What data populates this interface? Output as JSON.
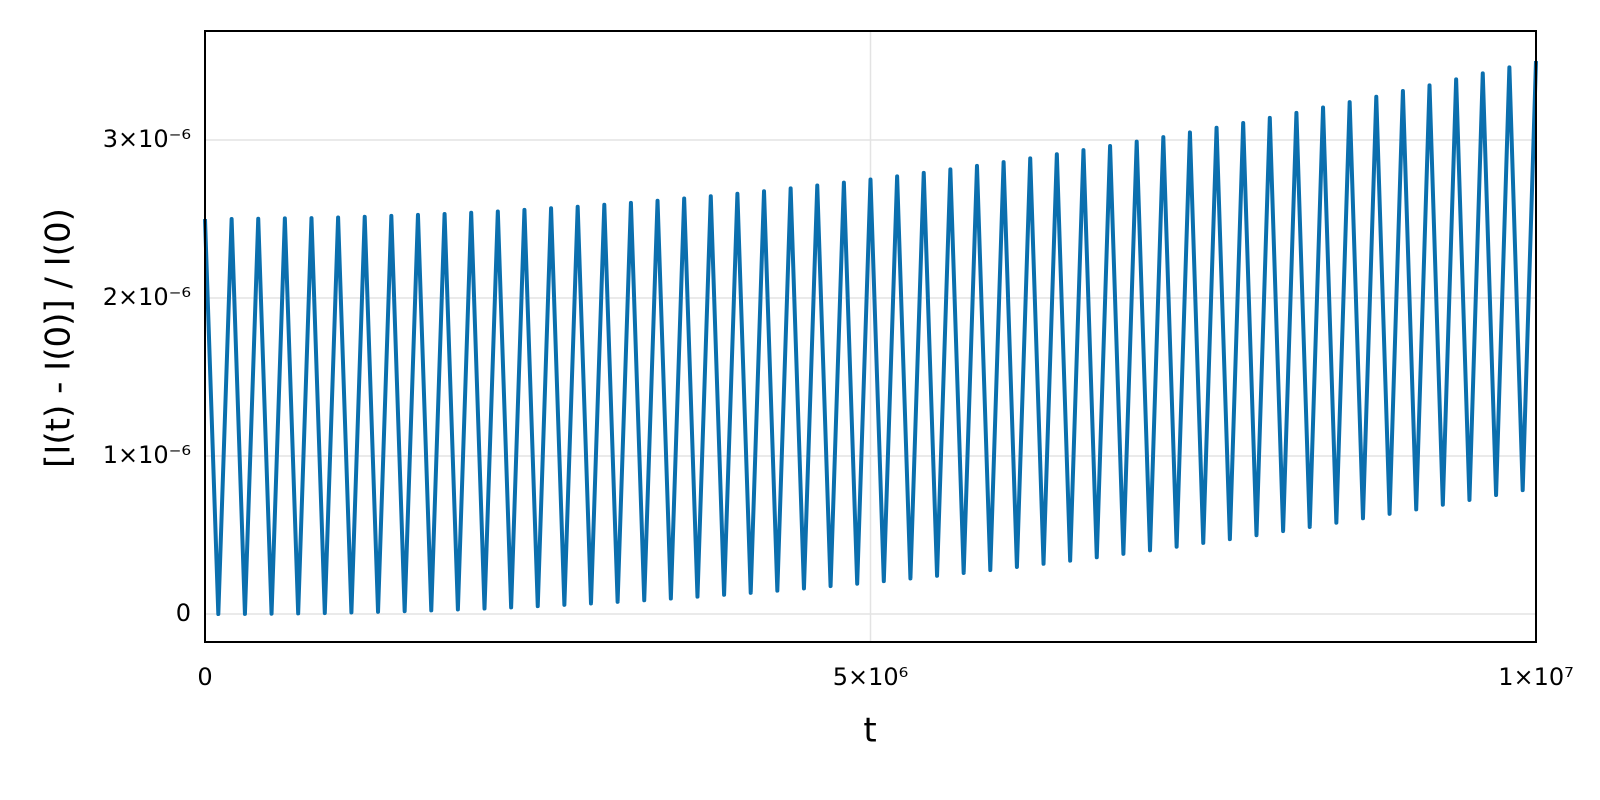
{
  "chart_data": {
    "type": "line",
    "xlabel": "t",
    "ylabel": "[I(t) - I(0)] / I(0)",
    "color": "#0b6fae",
    "grid": true,
    "xlim": [
      0,
      10000000
    ],
    "ylim": [
      -1.77e-07,
      3.69e-06
    ],
    "xticks": [
      0,
      {
        "value": 5000000,
        "label": "5×10⁶"
      },
      {
        "value": 10000000,
        "label": "1×10⁷"
      }
    ],
    "yticks": [
      0,
      {
        "value": 1e-06,
        "label": "1×10⁻⁶"
      },
      {
        "value": 2e-06,
        "label": "2×10⁻⁶"
      },
      {
        "value": 3e-06,
        "label": "3×10⁻⁶"
      }
    ],
    "x": [
      0,
      100000,
      200000,
      300000,
      400000,
      500000,
      600000,
      700000,
      800000,
      900000,
      1000000,
      1100000,
      1200000,
      1300000,
      1400000,
      1500000,
      1600000,
      1700000,
      1800000,
      1900000,
      2000000,
      2100000,
      2200000,
      2300000,
      2400000,
      2500000,
      2600000,
      2700000,
      2800000,
      2900000,
      3000000,
      3100000,
      3200000,
      3300000,
      3400000,
      3500000,
      3600000,
      3700000,
      3800000,
      3900000,
      4000000,
      4100000,
      4200000,
      4300000,
      4400000,
      4500000,
      4600000,
      4700000,
      4800000,
      4900000,
      5000000,
      5100000,
      5200000,
      5300000,
      5400000,
      5500000,
      5600000,
      5700000,
      5800000,
      5900000,
      6000000,
      6100000,
      6200000,
      6300000,
      6400000,
      6500000,
      6600000,
      6700000,
      6800000,
      6900000,
      7000000,
      7100000,
      7200000,
      7300000,
      7400000,
      7500000,
      7600000,
      7700000,
      7800000,
      7900000,
      8000000,
      8100000,
      8200000,
      8300000,
      8400000,
      8500000,
      8600000,
      8700000,
      8800000,
      8900000,
      9000000,
      9100000,
      9200000,
      9300000,
      9400000,
      9500000,
      9600000,
      9700000,
      9800000,
      9900000,
      10000000
    ],
    "values": [
      2.5e-06,
      0,
      2.5e-06,
      1e-09,
      2.502e-06,
      2e-09,
      2.504e-06,
      4e-09,
      2.506e-06,
      6e-09,
      2.51e-06,
      1e-08,
      2.514e-06,
      1.4e-08,
      2.52e-06,
      1.8e-08,
      2.526e-06,
      2.3e-08,
      2.532e-06,
      2.9e-08,
      2.54e-06,
      3.5e-08,
      2.548e-06,
      4.2e-08,
      2.558e-06,
      5e-08,
      2.568e-06,
      5.8e-08,
      2.578e-06,
      6.7e-08,
      2.59e-06,
      7.7e-08,
      2.602e-06,
      8.7e-08,
      2.616e-06,
      9.8e-08,
      2.63e-06,
      1.1e-07,
      2.644e-06,
      1.22e-07,
      2.66e-06,
      1.34e-07,
      2.676e-06,
      1.48e-07,
      2.694e-06,
      1.62e-07,
      2.712e-06,
      1.77e-07,
      2.73e-06,
      1.92e-07,
      2.75e-06,
      2.08e-07,
      2.77e-06,
      2.25e-07,
      2.792e-06,
      2.42e-07,
      2.814e-06,
      2.6e-07,
      2.836e-06,
      2.78e-07,
      2.86e-06,
      2.98e-07,
      2.884e-06,
      3.18e-07,
      2.91e-06,
      3.38e-07,
      2.936e-06,
      3.59e-07,
      2.962e-06,
      3.81e-07,
      2.99e-06,
      4.03e-07,
      3.018e-06,
      4.26e-07,
      3.048e-06,
      4.5e-07,
      3.078e-06,
      4.74e-07,
      3.108e-06,
      4.99e-07,
      3.14e-06,
      5.25e-07,
      3.172e-06,
      5.51e-07,
      3.206e-06,
      5.78e-07,
      3.24e-06,
      6.06e-07,
      3.274e-06,
      6.34e-07,
      3.31e-06,
      6.62e-07,
      3.346e-06,
      6.92e-07,
      3.384e-06,
      7.22e-07,
      3.422e-06,
      7.53e-07,
      3.46e-06,
      7.84e-07,
      3.5e-06
    ]
  }
}
